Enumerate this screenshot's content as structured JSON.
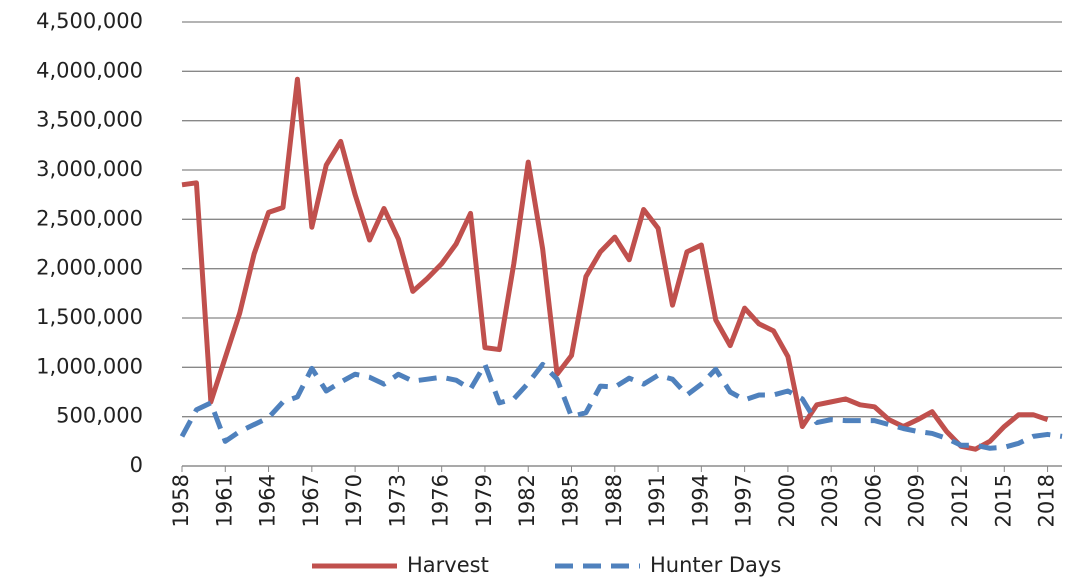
{
  "chart_data": {
    "type": "line",
    "x": [
      1958,
      1959,
      1960,
      1961,
      1962,
      1963,
      1964,
      1965,
      1966,
      1967,
      1968,
      1969,
      1970,
      1971,
      1972,
      1973,
      1974,
      1975,
      1976,
      1977,
      1978,
      1979,
      1980,
      1981,
      1982,
      1983,
      1984,
      1985,
      1986,
      1987,
      1988,
      1989,
      1990,
      1991,
      1992,
      1993,
      1994,
      1995,
      1996,
      1997,
      1998,
      1999,
      2000,
      2001,
      2002,
      2003,
      2004,
      2005,
      2006,
      2007,
      2008,
      2009,
      2010,
      2011,
      2012,
      2013,
      2014,
      2015,
      2016,
      2017,
      2018,
      2019
    ],
    "series": [
      {
        "name": "Harvest",
        "color": "#c0504d",
        "dash": false,
        "values": [
          2850000,
          2870000,
          650000,
          1100000,
          1550000,
          2150000,
          2570000,
          2620000,
          3920000,
          2420000,
          3050000,
          3290000,
          2750000,
          2290000,
          2610000,
          2300000,
          1770000,
          1900000,
          2050000,
          2250000,
          2560000,
          1200000,
          1180000,
          2050000,
          3080000,
          2200000,
          930000,
          1120000,
          1920000,
          2170000,
          2320000,
          2090000,
          2600000,
          2410000,
          1630000,
          2170000,
          2240000,
          1480000,
          1220000,
          1600000,
          1440000,
          1370000,
          1110000,
          400000,
          620000,
          650000,
          680000,
          620000,
          600000,
          470000,
          400000,
          470000,
          550000,
          350000,
          200000,
          170000,
          250000,
          400000,
          520000,
          520000,
          470000,
          null
        ]
      },
      {
        "name": "Hunter Days",
        "color": "#4f81bd",
        "dash": true,
        "values": [
          300000,
          570000,
          640000,
          250000,
          350000,
          420000,
          490000,
          650000,
          700000,
          990000,
          760000,
          850000,
          930000,
          900000,
          830000,
          930000,
          860000,
          880000,
          900000,
          870000,
          780000,
          1030000,
          640000,
          680000,
          840000,
          1030000,
          880000,
          500000,
          540000,
          810000,
          800000,
          890000,
          830000,
          920000,
          880000,
          720000,
          830000,
          980000,
          750000,
          670000,
          720000,
          720000,
          760000,
          680000,
          440000,
          470000,
          460000,
          460000,
          460000,
          420000,
          380000,
          350000,
          330000,
          280000,
          210000,
          210000,
          180000,
          190000,
          230000,
          300000,
          320000,
          300000
        ]
      }
    ],
    "xlim": [
      1958,
      2019
    ],
    "xticks": [
      1958,
      1961,
      1964,
      1967,
      1970,
      1973,
      1976,
      1979,
      1982,
      1985,
      1988,
      1991,
      1994,
      1997,
      2000,
      2003,
      2006,
      2009,
      2012,
      2015,
      2018
    ],
    "ylim": [
      0,
      4500000
    ],
    "yticks": [
      0,
      {
        "value": 500000,
        "label": "500,000"
      },
      {
        "value": 1000000,
        "label": "1,000,000"
      },
      {
        "value": 1500000,
        "label": "1,500,000"
      },
      {
        "value": 2000000,
        "label": "2,000,000"
      },
      {
        "value": 2500000,
        "label": "2,500,000"
      },
      {
        "value": 3000000,
        "label": "3,000,000"
      },
      {
        "value": 3500000,
        "label": "3,500,000"
      },
      {
        "value": 4000000,
        "label": "4,000,000"
      },
      {
        "value": 4500000,
        "label": "4,500,000"
      }
    ],
    "grid": true,
    "legend": "bottom"
  }
}
